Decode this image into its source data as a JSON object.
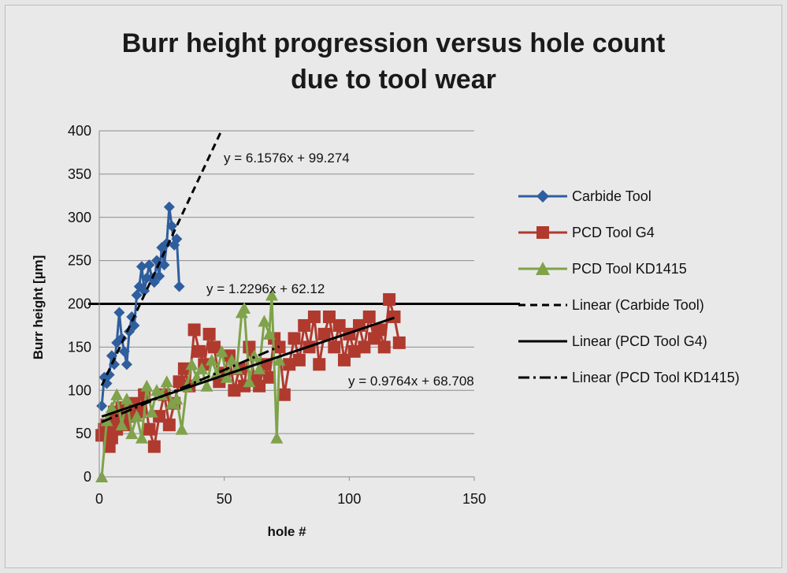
{
  "title_line1": "Burr height progression versus hole count",
  "title_line2": "due to tool wear",
  "chart_data": {
    "type": "line",
    "title": "Burr height progression versus hole count due to tool wear",
    "xlabel": "hole #",
    "ylabel": "Burr height [µm]",
    "xlim": [
      0,
      150
    ],
    "ylim": [
      0,
      400
    ],
    "xticks": [
      0,
      50,
      100,
      150
    ],
    "yticks": [
      0,
      50,
      100,
      150,
      200,
      250,
      300,
      350,
      400
    ],
    "grid": "horizontal",
    "legend_position": "right",
    "threshold": {
      "y": 200,
      "color": "#000000"
    },
    "series": [
      {
        "name": "Carbide Tool",
        "color": "#2f5e9e",
        "marker": "diamond",
        "points": [
          [
            1,
            82
          ],
          [
            2,
            115
          ],
          [
            3,
            108
          ],
          [
            4,
            118
          ],
          [
            5,
            140
          ],
          [
            6,
            130
          ],
          [
            7,
            155
          ],
          [
            8,
            190
          ],
          [
            9,
            160
          ],
          [
            10,
            145
          ],
          [
            11,
            130
          ],
          [
            12,
            168
          ],
          [
            13,
            185
          ],
          [
            14,
            175
          ],
          [
            15,
            210
          ],
          [
            16,
            220
          ],
          [
            17,
            243
          ],
          [
            18,
            215
          ],
          [
            19,
            230
          ],
          [
            20,
            245
          ],
          [
            21,
            230
          ],
          [
            22,
            225
          ],
          [
            23,
            250
          ],
          [
            24,
            232
          ],
          [
            25,
            265
          ],
          [
            26,
            245
          ],
          [
            27,
            270
          ],
          [
            28,
            312
          ],
          [
            29,
            290
          ],
          [
            30,
            268
          ],
          [
            31,
            275
          ],
          [
            32,
            220
          ]
        ]
      },
      {
        "name": "PCD Tool G4",
        "color": "#b03a2e",
        "marker": "square",
        "points": [
          [
            1,
            48
          ],
          [
            2,
            55
          ],
          [
            3,
            60
          ],
          [
            4,
            35
          ],
          [
            5,
            45
          ],
          [
            6,
            75
          ],
          [
            7,
            55
          ],
          [
            8,
            65
          ],
          [
            9,
            80
          ],
          [
            10,
            60
          ],
          [
            12,
            70
          ],
          [
            14,
            85
          ],
          [
            16,
            75
          ],
          [
            18,
            95
          ],
          [
            20,
            55
          ],
          [
            22,
            35
          ],
          [
            24,
            70
          ],
          [
            26,
            95
          ],
          [
            28,
            60
          ],
          [
            30,
            85
          ],
          [
            32,
            110
          ],
          [
            34,
            125
          ],
          [
            36,
            105
          ],
          [
            38,
            170
          ],
          [
            40,
            145
          ],
          [
            42,
            130
          ],
          [
            44,
            165
          ],
          [
            46,
            150
          ],
          [
            48,
            110
          ],
          [
            50,
            120
          ],
          [
            52,
            140
          ],
          [
            54,
            100
          ],
          [
            56,
            125
          ],
          [
            58,
            105
          ],
          [
            60,
            150
          ],
          [
            62,
            115
          ],
          [
            64,
            105
          ],
          [
            66,
            130
          ],
          [
            68,
            115
          ],
          [
            70,
            160
          ],
          [
            72,
            150
          ],
          [
            74,
            95
          ],
          [
            76,
            130
          ],
          [
            78,
            160
          ],
          [
            80,
            135
          ],
          [
            82,
            175
          ],
          [
            84,
            150
          ],
          [
            86,
            185
          ],
          [
            88,
            130
          ],
          [
            90,
            165
          ],
          [
            92,
            185
          ],
          [
            94,
            150
          ],
          [
            96,
            175
          ],
          [
            98,
            135
          ],
          [
            100,
            165
          ],
          [
            102,
            145
          ],
          [
            104,
            175
          ],
          [
            106,
            150
          ],
          [
            108,
            185
          ],
          [
            110,
            160
          ],
          [
            112,
            170
          ],
          [
            114,
            150
          ],
          [
            116,
            205
          ],
          [
            118,
            185
          ],
          [
            120,
            155
          ]
        ]
      },
      {
        "name": "PCD Tool KD1415",
        "color": "#7fa24a",
        "marker": "triangle",
        "points": [
          [
            1,
            0
          ],
          [
            3,
            65
          ],
          [
            5,
            80
          ],
          [
            7,
            95
          ],
          [
            9,
            60
          ],
          [
            11,
            90
          ],
          [
            13,
            50
          ],
          [
            15,
            70
          ],
          [
            17,
            45
          ],
          [
            19,
            105
          ],
          [
            21,
            75
          ],
          [
            23,
            100
          ],
          [
            25,
            95
          ],
          [
            27,
            110
          ],
          [
            29,
            85
          ],
          [
            31,
            90
          ],
          [
            33,
            55
          ],
          [
            35,
            105
          ],
          [
            37,
            130
          ],
          [
            39,
            115
          ],
          [
            41,
            125
          ],
          [
            43,
            105
          ],
          [
            45,
            135
          ],
          [
            47,
            120
          ],
          [
            49,
            145
          ],
          [
            51,
            115
          ],
          [
            53,
            135
          ],
          [
            55,
            125
          ],
          [
            57,
            190
          ],
          [
            58,
            195
          ],
          [
            60,
            110
          ],
          [
            62,
            140
          ],
          [
            64,
            125
          ],
          [
            66,
            180
          ],
          [
            68,
            165
          ],
          [
            69,
            210
          ],
          [
            71,
            45
          ],
          [
            72,
            135
          ]
        ]
      }
    ],
    "trendlines": [
      {
        "name": "Linear (Carbide Tool)",
        "series": "Carbide Tool",
        "style": "dashed",
        "slope": 6.1576,
        "intercept": 99.274,
        "equation": "y = 6.1576x + 99.274",
        "x_range": [
          1,
          49
        ]
      },
      {
        "name": "Linear (PCD Tool G4)",
        "series": "PCD Tool G4",
        "style": "solid",
        "slope": 0.9764,
        "intercept": 68.708,
        "equation": "y = 0.9764x + 68.708",
        "x_range": [
          1,
          118
        ]
      },
      {
        "name": "Linear (PCD Tool KD1415)",
        "series": "PCD Tool KD1415",
        "style": "dash-dot",
        "slope": 1.2296,
        "intercept": 62.12,
        "equation": "y = 1.2296x + 62.12",
        "x_range": [
          1,
          72
        ]
      }
    ]
  }
}
